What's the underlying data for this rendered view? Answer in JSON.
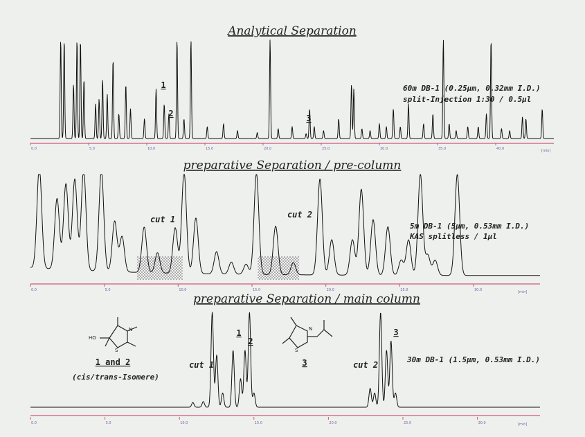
{
  "chart_data": [
    {
      "type": "line",
      "title": "Analytical Separation",
      "xlabel": "[min]",
      "xlim": [
        0,
        45
      ],
      "x_ticks": [
        "0.0",
        "5.0",
        "10.0",
        "15.0",
        "20.0",
        "25.0",
        "30.0",
        "35.0",
        "40.0"
      ],
      "annotations": [
        "60m DB-1 (0.25µm, 0.32mm I.D.)",
        "split-Injection 1:30 / 0.5µl"
      ],
      "peak_labels": [
        {
          "label": "1",
          "x": 10.8
        },
        {
          "label": "2",
          "x": 11.5
        },
        {
          "label": "3",
          "x": 24.3
        }
      ],
      "peaks": [
        [
          2.6,
          1.0
        ],
        [
          2.9,
          1.0
        ],
        [
          3.7,
          0.55
        ],
        [
          4.0,
          1.0
        ],
        [
          4.3,
          1.0
        ],
        [
          4.6,
          0.6
        ],
        [
          5.6,
          0.35
        ],
        [
          5.9,
          0.4
        ],
        [
          6.2,
          0.6
        ],
        [
          6.6,
          0.45
        ],
        [
          7.1,
          0.8
        ],
        [
          7.6,
          0.25
        ],
        [
          8.2,
          0.55
        ],
        [
          8.6,
          0.3
        ],
        [
          9.8,
          0.2
        ],
        [
          10.8,
          0.5
        ],
        [
          11.5,
          0.35
        ],
        [
          11.9,
          0.25
        ],
        [
          12.6,
          1.0
        ],
        [
          13.2,
          0.2
        ],
        [
          13.8,
          1.0
        ],
        [
          15.2,
          0.12
        ],
        [
          16.6,
          0.15
        ],
        [
          17.8,
          0.08
        ],
        [
          19.5,
          0.06
        ],
        [
          20.6,
          1.0
        ],
        [
          21.3,
          0.1
        ],
        [
          22.5,
          0.12
        ],
        [
          23.7,
          0.05
        ],
        [
          24.0,
          0.3
        ],
        [
          24.4,
          0.12
        ],
        [
          25.2,
          0.08
        ],
        [
          26.5,
          0.2
        ],
        [
          27.6,
          0.55
        ],
        [
          27.8,
          0.5
        ],
        [
          28.5,
          0.1
        ],
        [
          29.2,
          0.08
        ],
        [
          30.0,
          0.15
        ],
        [
          30.6,
          0.12
        ],
        [
          31.2,
          0.3
        ],
        [
          31.8,
          0.12
        ],
        [
          32.5,
          0.35
        ],
        [
          33.8,
          0.15
        ],
        [
          34.6,
          0.25
        ],
        [
          35.5,
          1.0
        ],
        [
          36.0,
          0.15
        ],
        [
          36.6,
          0.08
        ],
        [
          37.6,
          0.12
        ],
        [
          38.5,
          0.12
        ],
        [
          39.2,
          0.25
        ],
        [
          39.6,
          1.0
        ],
        [
          40.5,
          0.1
        ],
        [
          41.2,
          0.08
        ],
        [
          42.3,
          0.22
        ],
        [
          42.6,
          0.2
        ],
        [
          44.0,
          0.3
        ]
      ]
    },
    {
      "type": "line",
      "title": "preparative Separation / pre-column",
      "xlabel": "[min]",
      "xlim": [
        0,
        34.5
      ],
      "x_ticks": [
        "0.0",
        "5.0",
        "10.0",
        "15.0",
        "20.0",
        "25.0",
        "30.0"
      ],
      "annotations": [
        "5m DB-1 (5µm, 0.53mm I.D.)",
        "KAS splitless / 1µl"
      ],
      "cuts": [
        {
          "label": "cut 1",
          "from": 7.2,
          "to": 10.3
        },
        {
          "label": "cut 2",
          "from": 15.4,
          "to": 18.2
        }
      ],
      "peaks": [
        [
          0.6,
          1.0
        ],
        [
          1.8,
          0.7
        ],
        [
          2.4,
          0.85
        ],
        [
          3.0,
          0.9
        ],
        [
          3.6,
          1.0
        ],
        [
          4.8,
          1.0
        ],
        [
          5.7,
          0.5
        ],
        [
          6.2,
          0.35
        ],
        [
          7.7,
          0.45
        ],
        [
          8.6,
          0.2
        ],
        [
          9.8,
          0.45
        ],
        [
          10.4,
          1.0
        ],
        [
          11.2,
          0.55
        ],
        [
          12.6,
          0.22
        ],
        [
          13.6,
          0.12
        ],
        [
          14.6,
          0.1
        ],
        [
          15.3,
          1.0
        ],
        [
          16.6,
          0.48
        ],
        [
          17.8,
          0.12
        ],
        [
          19.6,
          0.95
        ],
        [
          20.4,
          0.35
        ],
        [
          21.8,
          0.35
        ],
        [
          22.4,
          0.85
        ],
        [
          23.2,
          0.55
        ],
        [
          24.2,
          0.48
        ],
        [
          25.1,
          0.15
        ],
        [
          25.6,
          0.35
        ],
        [
          26.4,
          1.0
        ],
        [
          26.9,
          0.2
        ],
        [
          27.4,
          0.15
        ],
        [
          28.9,
          1.0
        ]
      ]
    },
    {
      "type": "line",
      "title": "preparative Separation / main column",
      "xlabel": "[min]",
      "xlim": [
        0,
        34.2
      ],
      "x_ticks": [
        "0.0",
        "5.0",
        "10.0",
        "15.0",
        "20.0",
        "25.0",
        "30.0"
      ],
      "annotations": [
        "30m DB-1 (1.5µm, 0.53mm I.D.)"
      ],
      "cut_labels": [
        {
          "label": "cut 1",
          "x": 11.0
        },
        {
          "label": "cut 2",
          "x": 22.0
        }
      ],
      "peak_labels": [
        {
          "label": "1",
          "x": 13.6
        },
        {
          "label": "2",
          "x": 14.4
        },
        {
          "label": "3",
          "x": 24.2
        }
      ],
      "peaks": [
        [
          10.9,
          0.05
        ],
        [
          11.6,
          0.06
        ],
        [
          12.2,
          1.0
        ],
        [
          12.5,
          0.55
        ],
        [
          12.9,
          0.15
        ],
        [
          13.6,
          0.6
        ],
        [
          14.1,
          0.3
        ],
        [
          14.4,
          0.6
        ],
        [
          14.7,
          1.0
        ],
        [
          15.0,
          0.15
        ],
        [
          22.8,
          0.2
        ],
        [
          23.1,
          0.15
        ],
        [
          23.5,
          1.0
        ],
        [
          23.9,
          0.6
        ],
        [
          24.2,
          0.7
        ],
        [
          24.5,
          0.15
        ]
      ]
    }
  ],
  "structures": [
    {
      "caption_bold": "1 and 2",
      "caption": "(cis/trans-Isomere)",
      "atoms": [
        "HO",
        "N",
        "S"
      ]
    },
    {
      "caption_bold": "3",
      "atoms": [
        "N",
        "S"
      ]
    }
  ]
}
